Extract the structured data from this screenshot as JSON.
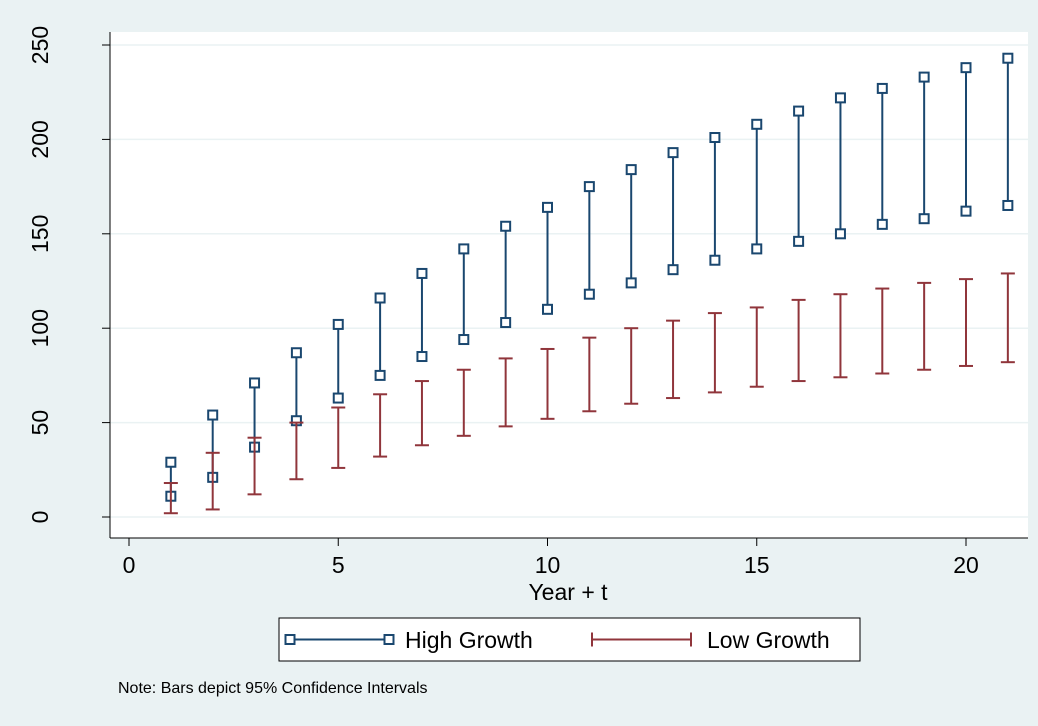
{
  "chart_data": {
    "type": "range-bar",
    "title": "",
    "xlabel": "Year + t",
    "ylabel": "",
    "xlim": [
      0,
      21.5
    ],
    "ylim": [
      0,
      250
    ],
    "x_ticks": [
      0,
      5,
      10,
      15,
      20
    ],
    "y_ticks": [
      0,
      50,
      100,
      150,
      200,
      250
    ],
    "grid": "horizontal",
    "legend_position": "bottom",
    "note": "Note: Bars depict 95% Confidence Intervals",
    "series": [
      {
        "name": "High Growth",
        "color": "#1a476f",
        "marker": "hollow-square",
        "x": [
          1,
          2,
          3,
          4,
          5,
          6,
          7,
          8,
          9,
          10,
          11,
          12,
          13,
          14,
          15,
          16,
          17,
          18,
          19,
          20,
          21
        ],
        "low": [
          11,
          21,
          37,
          51,
          63,
          75,
          85,
          94,
          103,
          110,
          118,
          124,
          131,
          136,
          142,
          146,
          150,
          155,
          158,
          162,
          165
        ],
        "high": [
          29,
          54,
          71,
          87,
          102,
          116,
          129,
          142,
          154,
          164,
          175,
          184,
          193,
          201,
          208,
          215,
          222,
          227,
          233,
          238,
          243
        ]
      },
      {
        "name": "Low Growth",
        "color": "#90353b",
        "marker": "cap",
        "x": [
          1,
          2,
          3,
          4,
          5,
          6,
          7,
          8,
          9,
          10,
          11,
          12,
          13,
          14,
          15,
          16,
          17,
          18,
          19,
          20,
          21
        ],
        "low": [
          2,
          4,
          12,
          20,
          26,
          32,
          38,
          43,
          48,
          52,
          56,
          60,
          63,
          66,
          69,
          72,
          74,
          76,
          78,
          80,
          82
        ],
        "high": [
          18,
          34,
          42,
          50,
          58,
          65,
          72,
          78,
          84,
          89,
          95,
          100,
          104,
          108,
          111,
          115,
          118,
          121,
          124,
          126,
          129
        ]
      }
    ]
  }
}
